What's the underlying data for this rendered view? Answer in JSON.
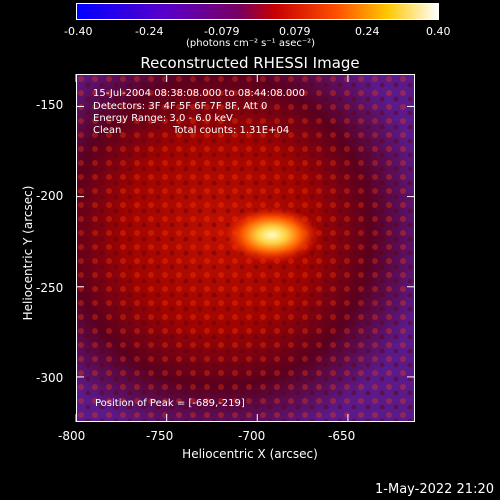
{
  "colorbar": {
    "tick_labels": [
      "-0.40",
      "-0.24",
      "-0.079",
      "0.079",
      "0.24",
      "0.40"
    ],
    "units": "(photons cm⁻² s⁻¹ asec⁻²)",
    "range": [
      -0.4,
      0.4
    ]
  },
  "title": "Reconstructed RHESSI Image",
  "info": {
    "line1": "15-Jul-2004 08:38:08.000 to 08:44:08.000",
    "line2": "Detectors: 3F 4F 5F 6F 7F 8F, Att 0",
    "line3": "Energy Range: 3.0 - 6.0 keV",
    "line4_left": "Clean",
    "line4_right": "Total counts: 1.31E+04",
    "peak": "Position of Peak = [-689,-219]"
  },
  "axes": {
    "xlabel": "Heliocentric X (arcsec)",
    "ylabel": "Heliocentric Y (arcsec)",
    "x_ticks": [
      "-800",
      "-750",
      "-700",
      "-650"
    ],
    "x_tick_values": [
      -800,
      -750,
      -700,
      -650
    ],
    "y_ticks": [
      "-150",
      "-200",
      "-250",
      "-300"
    ],
    "y_tick_values": [
      -150,
      -200,
      -250,
      -300
    ],
    "xlim": [
      -800,
      -613
    ],
    "ylim": [
      -325,
      -132
    ]
  },
  "footer_date": "1-May-2022 21:20",
  "peak_position": [
    -689,
    -219
  ]
}
